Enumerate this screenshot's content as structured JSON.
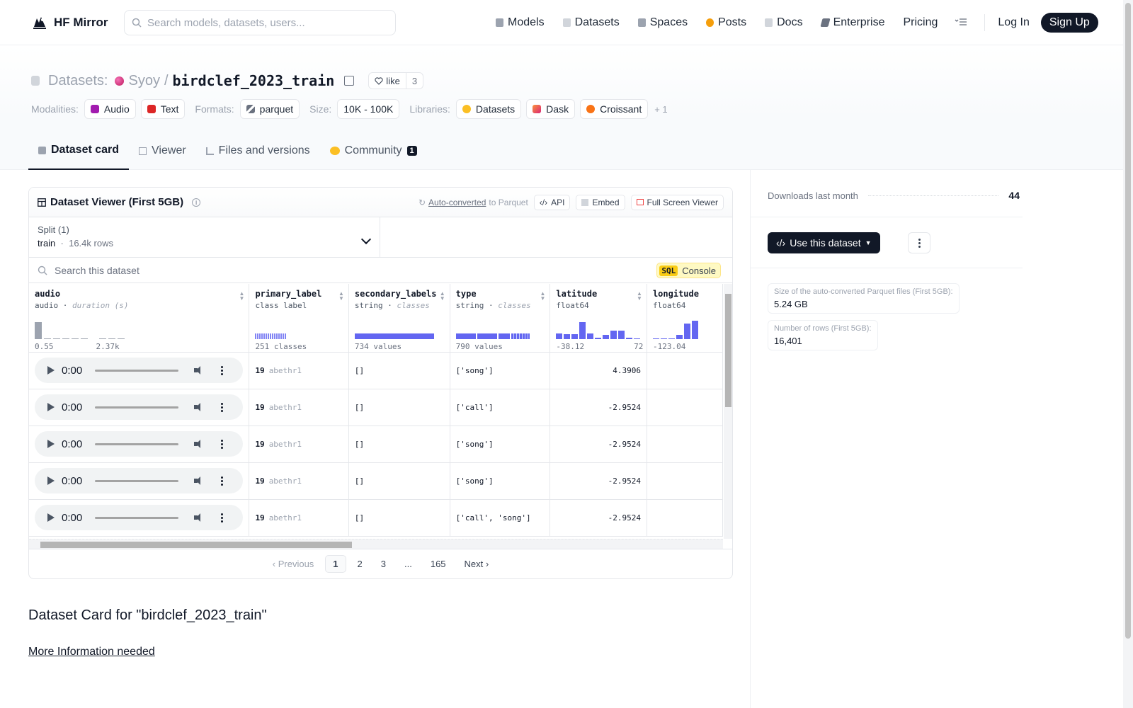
{
  "nav": {
    "brand": "HF Mirror",
    "search_placeholder": "Search models, datasets, users...",
    "links": [
      {
        "label": "Models",
        "icon": "models-icon",
        "color": "#9ca3af"
      },
      {
        "label": "Datasets",
        "icon": "datasets-icon",
        "color": "#d1d5db"
      },
      {
        "label": "Spaces",
        "icon": "spaces-icon",
        "color": "#9ca3af"
      },
      {
        "label": "Posts",
        "icon": "posts-icon",
        "color": "#f59e0b"
      },
      {
        "label": "Docs",
        "icon": "docs-icon",
        "color": "#d1d5db"
      },
      {
        "label": "Enterprise",
        "icon": "enterprise-icon",
        "color": "#6b7280"
      }
    ],
    "pricing": "Pricing",
    "login": "Log In",
    "signup": "Sign Up"
  },
  "header": {
    "section": "Datasets:",
    "org": "Syoy",
    "separator": "/",
    "dataset": "birdclef_2023_train",
    "like_label": "like",
    "like_count": "3",
    "modalities_label": "Modalities:",
    "modalities": [
      "Audio",
      "Text"
    ],
    "formats_label": "Formats:",
    "formats": [
      "parquet"
    ],
    "size_label": "Size:",
    "size": "10K - 100K",
    "libraries_label": "Libraries:",
    "libraries": [
      "Datasets",
      "Dask",
      "Croissant"
    ],
    "libraries_more": "+ 1"
  },
  "tabs": [
    {
      "label": "Dataset card",
      "active": true
    },
    {
      "label": "Viewer",
      "active": false
    },
    {
      "label": "Files and versions",
      "active": false
    },
    {
      "label": "Community",
      "active": false,
      "badge": "1"
    }
  ],
  "viewer": {
    "title": "Dataset Viewer (First 5GB)",
    "auto_converted": "Auto-converted",
    "to_parquet": "to Parquet",
    "api_label": "API",
    "embed_label": "Embed",
    "fullscreen_label": "Full Screen Viewer",
    "split_label": "Split (1)",
    "split_value": "train",
    "split_rows": "16.4k rows",
    "search_placeholder": "Search this dataset",
    "sql_tag": "SQL",
    "sql_label": "Console",
    "columns": [
      {
        "name": "audio",
        "type": "audio",
        "subtype": "duration (s)",
        "stat_left": "0.55",
        "stat_right": "2.37k"
      },
      {
        "name": "primary_label",
        "type": "class label",
        "subtype": "",
        "stat_left": "251 classes",
        "stat_right": ""
      },
      {
        "name": "secondary_labels",
        "type": "string",
        "subtype": "classes",
        "stat_left": "734 values",
        "stat_right": ""
      },
      {
        "name": "type",
        "type": "string",
        "subtype": "classes",
        "stat_left": "790 values",
        "stat_right": ""
      },
      {
        "name": "latitude",
        "type": "float64",
        "subtype": "",
        "stat_left": "-38.12",
        "stat_right": "72"
      },
      {
        "name": "longitude",
        "type": "float64",
        "subtype": "",
        "stat_left": "-123.04",
        "stat_right": ""
      }
    ],
    "rows": [
      {
        "time": "0:00",
        "label_id": "19",
        "label": "abethr1",
        "secondary": "[]",
        "type": "['song']",
        "latitude": "4.3906"
      },
      {
        "time": "0:00",
        "label_id": "19",
        "label": "abethr1",
        "secondary": "[]",
        "type": "['call']",
        "latitude": "-2.9524"
      },
      {
        "time": "0:00",
        "label_id": "19",
        "label": "abethr1",
        "secondary": "[]",
        "type": "['song']",
        "latitude": "-2.9524"
      },
      {
        "time": "0:00",
        "label_id": "19",
        "label": "abethr1",
        "secondary": "[]",
        "type": "['song']",
        "latitude": "-2.9524"
      },
      {
        "time": "0:00",
        "label_id": "19",
        "label": "abethr1",
        "secondary": "[]",
        "type": "['call', 'song']",
        "latitude": "-2.9524"
      }
    ],
    "pager": {
      "previous": "Previous",
      "pages": [
        "1",
        "2",
        "3",
        "...",
        "165"
      ],
      "next": "Next",
      "current": "1"
    }
  },
  "card": {
    "title": "Dataset Card for \"birdclef_2023_train\"",
    "more_info": "More Information needed"
  },
  "sidebar": {
    "downloads_label": "Downloads last month",
    "downloads_value": "44",
    "use_dataset": "Use this dataset",
    "parquet_size_label": "Size of the auto-converted Parquet files (First 5GB):",
    "parquet_size_value": "5.24 GB",
    "rows_label": "Number of rows (First 5GB):",
    "rows_value": "16,401"
  },
  "colors": {
    "accent": "#6366f1",
    "dark": "#111827",
    "sql": "#facc15"
  }
}
